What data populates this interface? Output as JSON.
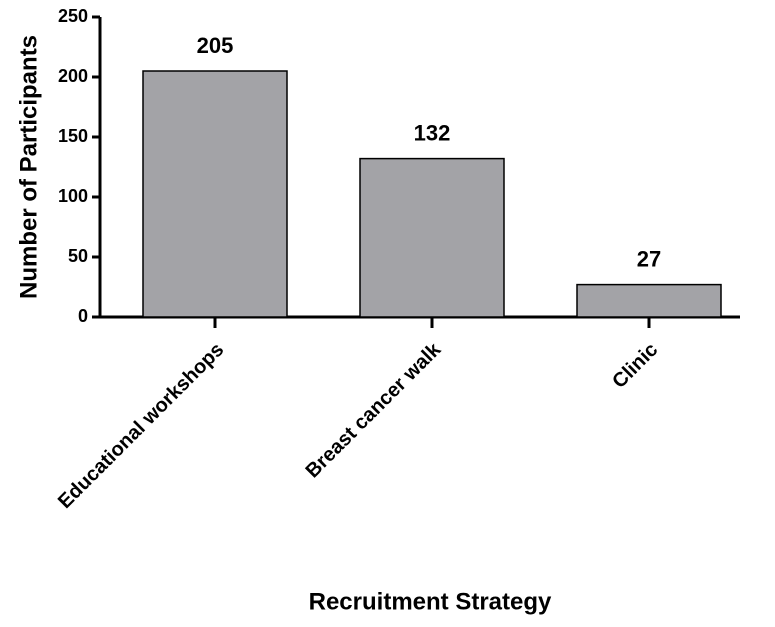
{
  "chart_data": {
    "type": "bar",
    "x_label": "Recruitment Strategy",
    "y_label": "Number of Participants",
    "categories": [
      "Educational workshops",
      "Breast cancer walk",
      "Clinic"
    ],
    "values": [
      205,
      132,
      27
    ],
    "color": "#a3a3a7",
    "ylim": [
      0,
      250
    ],
    "yticks": [
      0,
      50,
      100,
      150,
      200,
      250
    ],
    "grid": false
  }
}
